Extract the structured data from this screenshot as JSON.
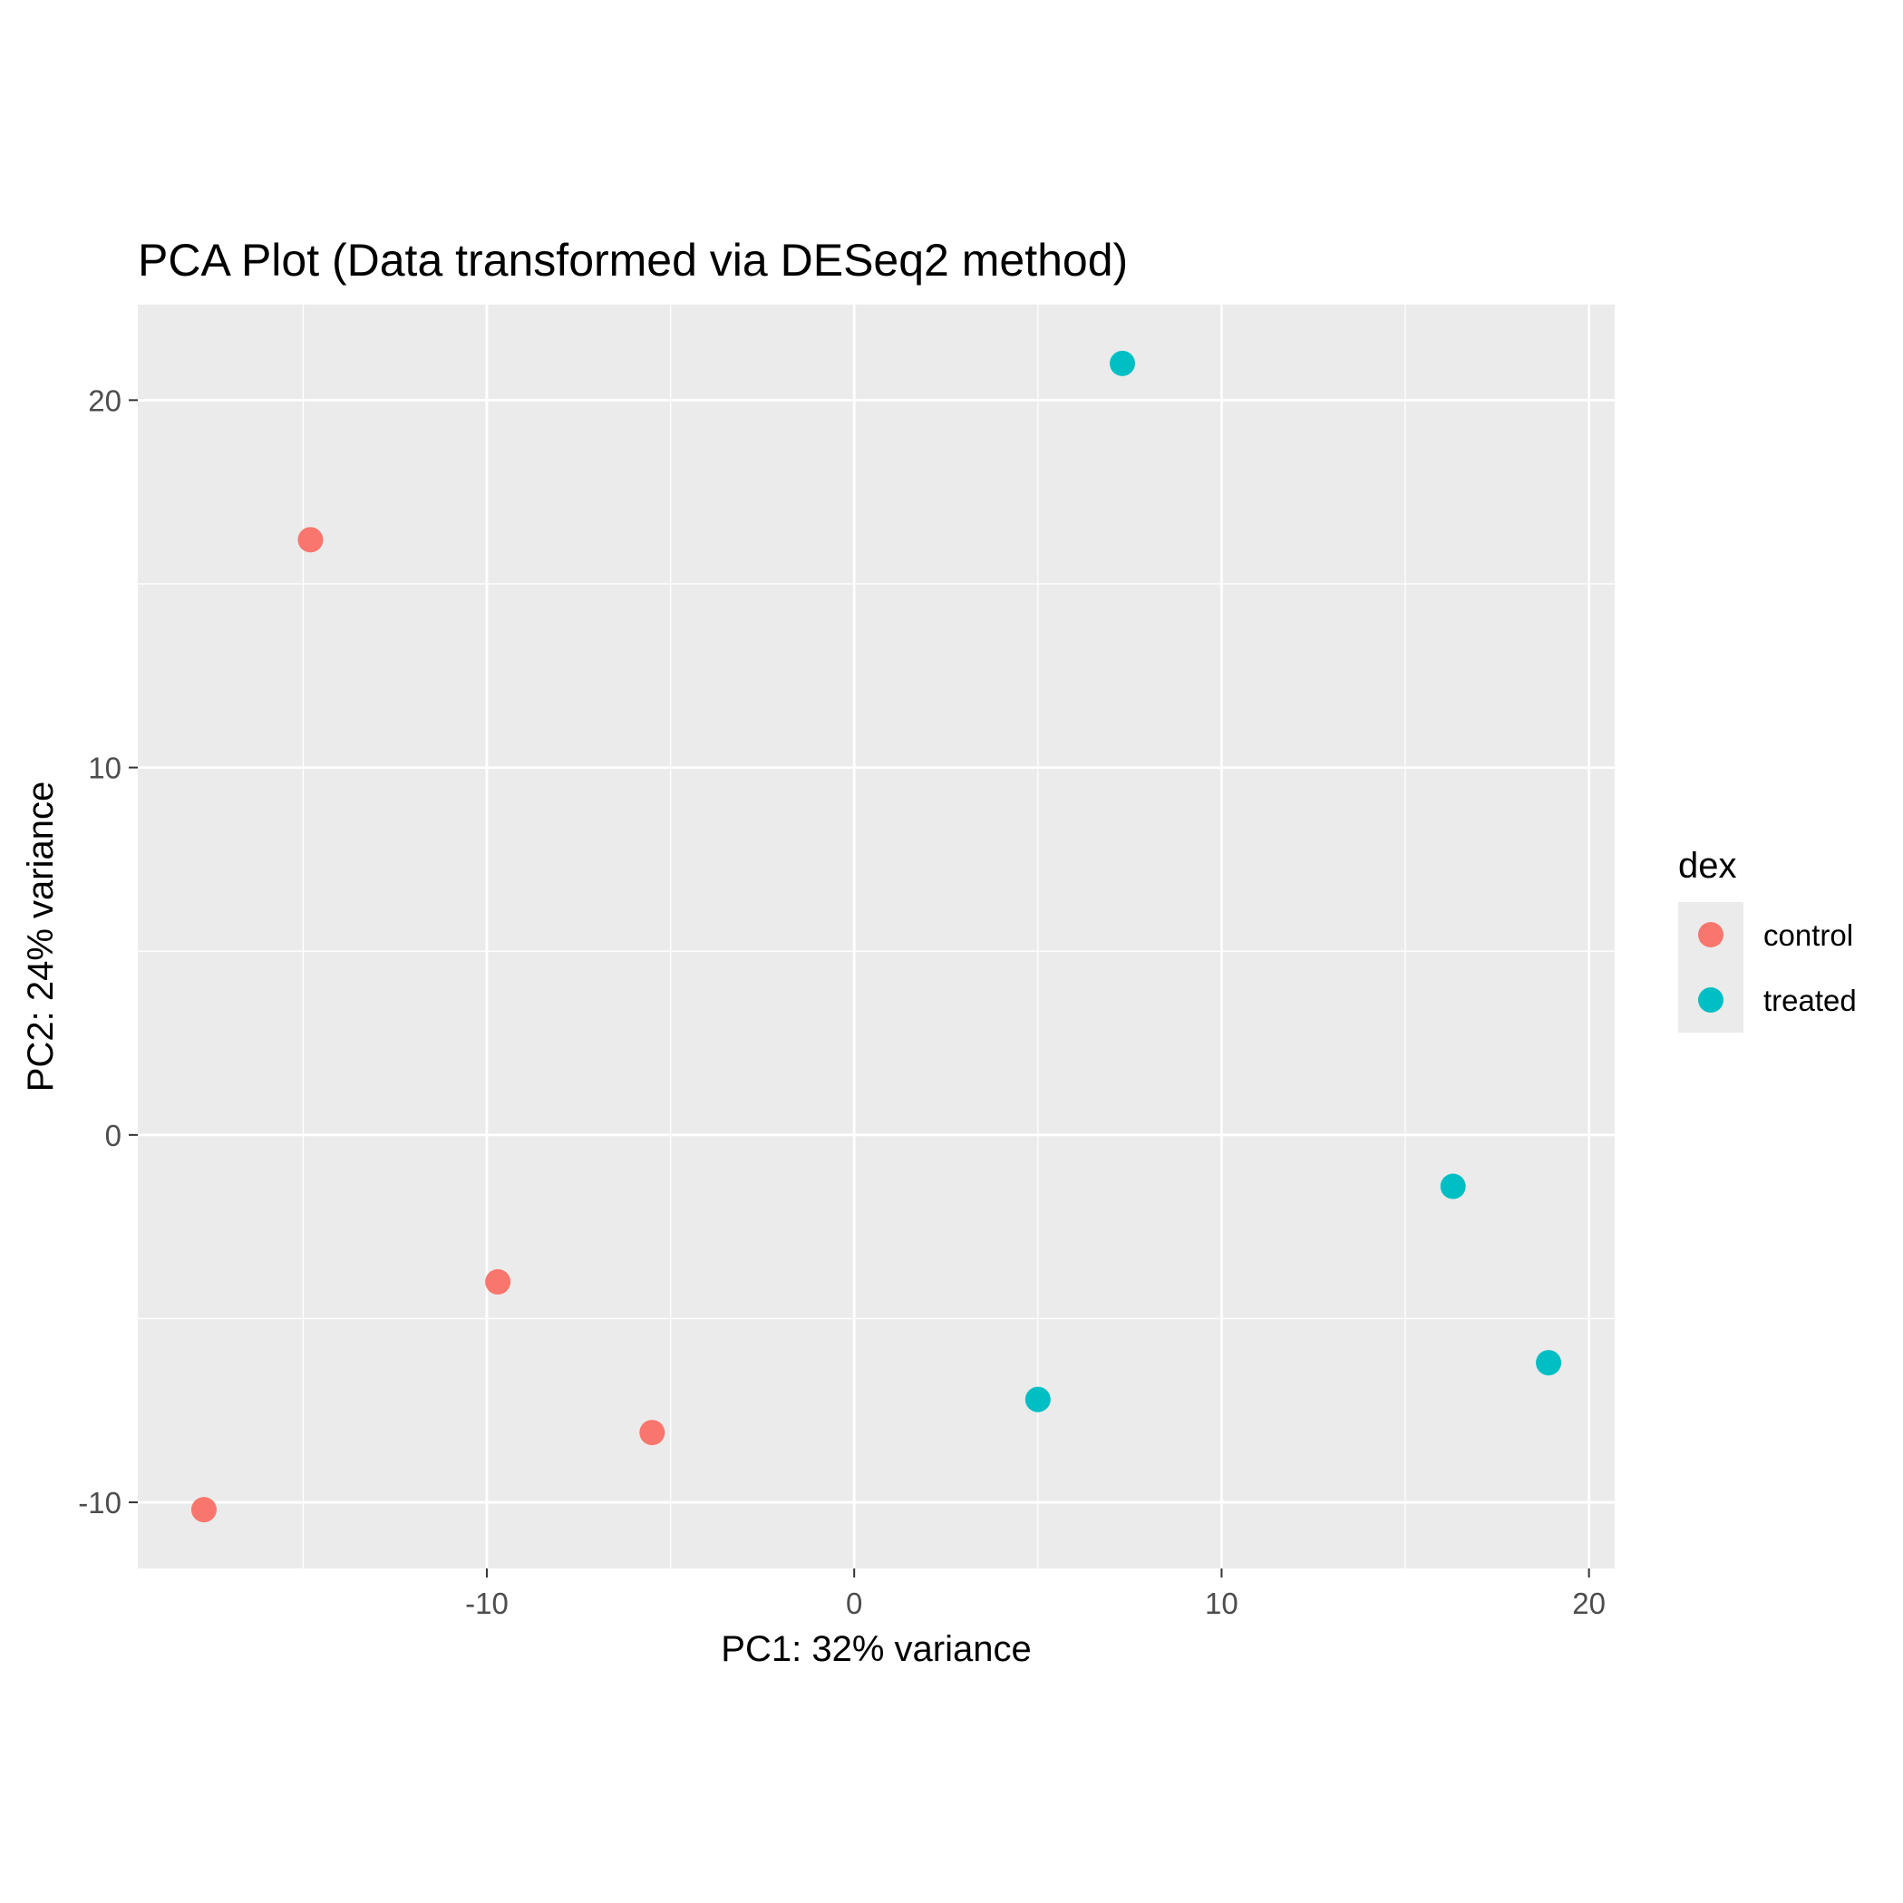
{
  "chart_data": {
    "type": "scatter",
    "title": "PCA Plot (Data transformed via DESeq2 method)",
    "xlabel": "PC1: 32% variance",
    "ylabel": "PC2: 24% variance",
    "xlim": [
      -19.5,
      20.7
    ],
    "ylim": [
      -11.8,
      22.6
    ],
    "x_ticks": [
      -10,
      0,
      10,
      20
    ],
    "x_tick_labels": [
      "-10",
      "0",
      "10",
      "20"
    ],
    "y_ticks": [
      -10,
      0,
      10,
      20
    ],
    "y_tick_labels": [
      "-10",
      "0",
      "10",
      "20"
    ],
    "grid": true,
    "legend": {
      "title": "dex",
      "position": "right",
      "entries": [
        {
          "label": "control",
          "color": "#F8766D"
        },
        {
          "label": "treated",
          "color": "#00BFC4"
        }
      ]
    },
    "series": [
      {
        "name": "control",
        "color": "#F8766D",
        "points": [
          {
            "x": -14.8,
            "y": 16.2
          },
          {
            "x": -9.7,
            "y": -4.0
          },
          {
            "x": -5.5,
            "y": -8.1
          },
          {
            "x": -17.7,
            "y": -10.2
          }
        ]
      },
      {
        "name": "treated",
        "color": "#00BFC4",
        "points": [
          {
            "x": 7.3,
            "y": 21.0
          },
          {
            "x": 16.3,
            "y": -1.4
          },
          {
            "x": 18.9,
            "y": -6.2
          },
          {
            "x": 5.0,
            "y": -7.2
          }
        ]
      }
    ]
  }
}
